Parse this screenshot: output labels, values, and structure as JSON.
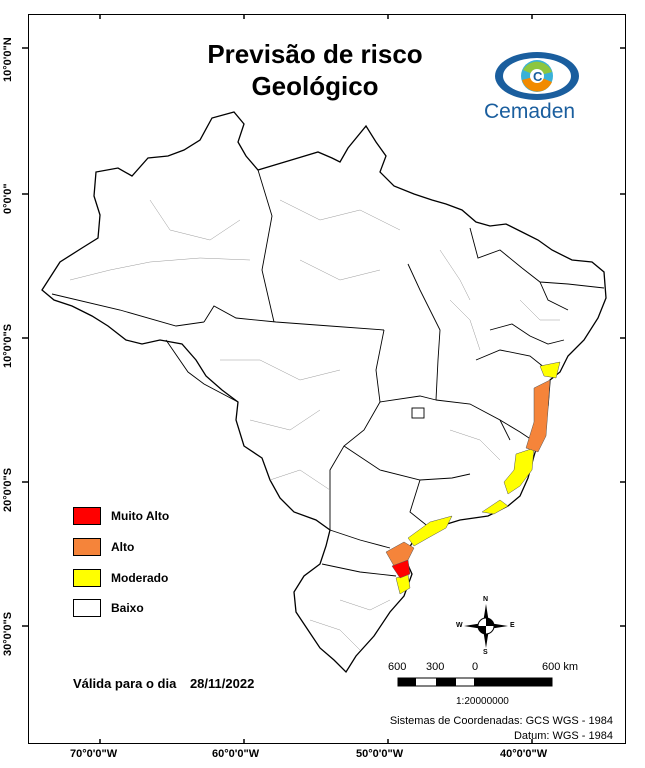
{
  "title_line1": "Previsão de risco",
  "title_line2": "Geológico",
  "logo": {
    "name": "Cemaden",
    "colors": [
      "#1a5e9e",
      "#39b1d8",
      "#f18a00",
      "#8dc63f"
    ]
  },
  "lat_labels": [
    "10°0'0\"N",
    "0°0'0\"",
    "10°0'0\"S",
    "20°0'0\"S",
    "30°0'0\"S"
  ],
  "lon_labels": [
    "70°0'0\"W",
    "60°0'0\"W",
    "50°0'0\"W",
    "40°0'0\"W"
  ],
  "legend": [
    {
      "label": "Muito Alto",
      "color": "#ff0000"
    },
    {
      "label": "Alto",
      "color": "#f5843a"
    },
    {
      "label": "Moderado",
      "color": "#ffff00"
    },
    {
      "label": "Baixo",
      "color": "#ffffff"
    }
  ],
  "valid_label": "Válida para o dia",
  "valid_date": "28/11/2022",
  "scale_bar": {
    "labels": [
      "600",
      "300",
      "0",
      "600 km"
    ],
    "ratio": "1:20000000"
  },
  "compass": {
    "n": "N",
    "s": "S",
    "e": "E",
    "w": "W"
  },
  "coordinate_system": "Sistemas de Coordenadas: GCS WGS - 1984",
  "datum": "Datum: WGS - 1984"
}
